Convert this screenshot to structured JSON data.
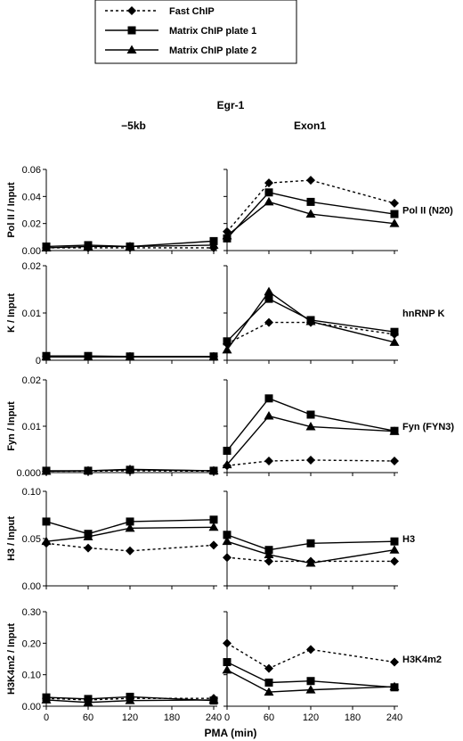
{
  "figure": {
    "gene": "Egr-1",
    "column_titles": [
      "−5kb",
      "Exon1"
    ],
    "xlabel": "PMA (min)",
    "x_ticks": [
      "0",
      "60",
      "120",
      "180",
      "240"
    ],
    "legend": [
      {
        "name": "Fast ChIP",
        "style": "dashed",
        "marker": "diamond"
      },
      {
        "name": "Matrix ChIP plate 1",
        "style": "solid",
        "marker": "square"
      },
      {
        "name": "Matrix ChIP plate 2",
        "style": "solid",
        "marker": "triangle"
      }
    ]
  },
  "chart_data": [
    {
      "type": "line",
      "row": 0,
      "title": "Pol II (N20)",
      "ylabel": "Pol II / Input",
      "ylim": [
        0,
        0.06
      ],
      "yticks": [
        "0.00",
        "0.02",
        "0.04",
        "0.06"
      ],
      "x": [
        0,
        60,
        120,
        240
      ],
      "panels": [
        {
          "column": "−5kb",
          "series": [
            {
              "name": "Fast ChIP",
              "values": [
                0.002,
                0.002,
                0.002,
                0.002
              ]
            },
            {
              "name": "Matrix ChIP plate 1",
              "values": [
                0.003,
                0.004,
                0.003,
                0.007
              ]
            },
            {
              "name": "Matrix ChIP plate 2",
              "values": [
                0.002,
                0.003,
                0.003,
                0.004
              ]
            }
          ]
        },
        {
          "column": "Exon1",
          "series": [
            {
              "name": "Fast ChIP",
              "values": [
                0.014,
                0.05,
                0.052,
                0.035
              ]
            },
            {
              "name": "Matrix ChIP plate 1",
              "values": [
                0.009,
                0.043,
                0.036,
                0.027
              ]
            },
            {
              "name": "Matrix ChIP plate 2",
              "values": [
                0.011,
                0.036,
                0.027,
                0.02
              ]
            }
          ]
        }
      ]
    },
    {
      "type": "line",
      "row": 1,
      "title": "hnRNP K",
      "ylabel": "K / Input",
      "ylim": [
        0,
        0.02
      ],
      "yticks": [
        "0",
        "0.01",
        "0.02"
      ],
      "x": [
        0,
        60,
        120,
        240
      ],
      "panels": [
        {
          "column": "−5kb",
          "series": [
            {
              "name": "Fast ChIP",
              "values": [
                0.0008,
                0.0008,
                0.0008,
                0.0008
              ]
            },
            {
              "name": "Matrix ChIP plate 1",
              "values": [
                0.0009,
                0.0009,
                0.0008,
                0.0008
              ]
            },
            {
              "name": "Matrix ChIP plate 2",
              "values": [
                0.0007,
                0.0007,
                0.0007,
                0.0007
              ]
            }
          ]
        },
        {
          "column": "Exon1",
          "series": [
            {
              "name": "Fast ChIP",
              "values": [
                0.0035,
                0.008,
                0.008,
                0.0055
              ]
            },
            {
              "name": "Matrix ChIP plate 1",
              "values": [
                0.004,
                0.013,
                0.0085,
                0.006
              ]
            },
            {
              "name": "Matrix ChIP plate 2",
              "values": [
                0.0022,
                0.0145,
                0.0082,
                0.0038
              ]
            }
          ]
        }
      ]
    },
    {
      "type": "line",
      "row": 2,
      "title": "Fyn (FYN3)",
      "ylabel": "Fyn / Input",
      "ylim": [
        0,
        0.02
      ],
      "yticks": [
        "0.000",
        "0.01",
        "0.02"
      ],
      "x": [
        0,
        60,
        120,
        240
      ],
      "panels": [
        {
          "column": "−5kb",
          "series": [
            {
              "name": "Fast ChIP",
              "values": [
                0.0003,
                0.0003,
                0.0004,
                0.0003
              ]
            },
            {
              "name": "Matrix ChIP plate 1",
              "values": [
                0.0004,
                0.0004,
                0.0006,
                0.0004
              ]
            },
            {
              "name": "Matrix ChIP plate 2",
              "values": [
                0.0003,
                0.0004,
                0.0007,
                0.0004
              ]
            }
          ]
        },
        {
          "column": "Exon1",
          "series": [
            {
              "name": "Fast ChIP",
              "values": [
                0.0015,
                0.0025,
                0.0027,
                0.0025
              ]
            },
            {
              "name": "Matrix ChIP plate 1",
              "values": [
                0.0047,
                0.016,
                0.0125,
                0.009
              ]
            },
            {
              "name": "Matrix ChIP plate 2",
              "values": [
                0.0017,
                0.0122,
                0.0099,
                0.0089
              ]
            }
          ]
        }
      ]
    },
    {
      "type": "line",
      "row": 3,
      "title": "H3",
      "ylabel": "H3 / Input",
      "ylim": [
        0,
        0.1
      ],
      "yticks": [
        "0.00",
        "0.05",
        "0.10"
      ],
      "x": [
        0,
        60,
        120,
        240
      ],
      "panels": [
        {
          "column": "−5kb",
          "series": [
            {
              "name": "Fast ChIP",
              "values": [
                0.045,
                0.04,
                0.037,
                0.043
              ]
            },
            {
              "name": "Matrix ChIP plate 1",
              "values": [
                0.068,
                0.055,
                0.068,
                0.07
              ]
            },
            {
              "name": "Matrix ChIP plate 2",
              "values": [
                0.047,
                0.052,
                0.061,
                0.062
              ]
            }
          ]
        },
        {
          "column": "Exon1",
          "series": [
            {
              "name": "Fast ChIP",
              "values": [
                0.03,
                0.026,
                0.026,
                0.026
              ]
            },
            {
              "name": "Matrix ChIP plate 1",
              "values": [
                0.054,
                0.038,
                0.045,
                0.047
              ]
            },
            {
              "name": "Matrix ChIP plate 2",
              "values": [
                0.047,
                0.033,
                0.024,
                0.038
              ]
            }
          ]
        }
      ]
    },
    {
      "type": "line",
      "row": 4,
      "title": "H3K4m2",
      "ylabel": "H3K4m2 / Input",
      "ylim": [
        0,
        0.3
      ],
      "yticks": [
        "0.00",
        "0.10",
        "0.20",
        "0.30"
      ],
      "x": [
        0,
        60,
        120,
        240
      ],
      "panels": [
        {
          "column": "−5kb",
          "series": [
            {
              "name": "Fast ChIP",
              "values": [
                0.025,
                0.02,
                0.025,
                0.025
              ]
            },
            {
              "name": "Matrix ChIP plate 1",
              "values": [
                0.028,
                0.023,
                0.03,
                0.018
              ]
            },
            {
              "name": "Matrix ChIP plate 2",
              "values": [
                0.02,
                0.012,
                0.018,
                0.02
              ]
            }
          ]
        },
        {
          "column": "Exon1",
          "series": [
            {
              "name": "Fast ChIP",
              "values": [
                0.2,
                0.12,
                0.18,
                0.14
              ]
            },
            {
              "name": "Matrix ChIP plate 1",
              "values": [
                0.14,
                0.075,
                0.08,
                0.06
              ]
            },
            {
              "name": "Matrix ChIP plate 2",
              "values": [
                0.115,
                0.045,
                0.052,
                0.062
              ]
            }
          ]
        }
      ]
    }
  ]
}
